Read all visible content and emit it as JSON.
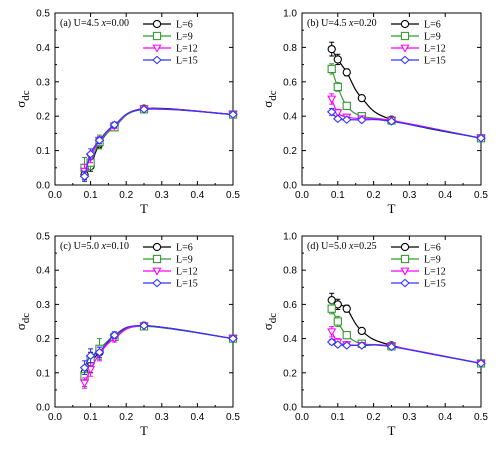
{
  "colors": {
    "L=6": "#000000",
    "L=9": "#339933",
    "L=12": "#ff00ff",
    "L=15": "#3333ff"
  },
  "chart_data": [
    {
      "type": "line",
      "panel_label": "(a) U=4.5 x=0.00",
      "label_parts": [
        "(a) U=4.5 ",
        "x",
        "=0.00"
      ],
      "xlabel": "T",
      "ylabel": "σdc",
      "xlim": [
        0.0,
        0.5
      ],
      "ylim": [
        0.0,
        0.5
      ],
      "xticks": [
        "0.0",
        "0.1",
        "0.2",
        "0.3",
        "0.4",
        "0.5"
      ],
      "yticks": [
        "0.0",
        "0.1",
        "0.2",
        "0.3",
        "0.4",
        "0.5"
      ],
      "legend_position": "top-right",
      "series": [
        {
          "name": "L=6",
          "marker": "circle",
          "x": [
            0.083,
            0.1,
            0.125,
            0.167,
            0.25,
            0.5
          ],
          "y": [
            0.03,
            0.055,
            0.12,
            0.17,
            0.222,
            0.205
          ],
          "err": [
            0.015,
            0.015,
            0.012,
            0.008,
            0.003,
            0.003
          ]
        },
        {
          "name": "L=9",
          "marker": "square",
          "x": [
            0.083,
            0.1,
            0.125,
            0.167,
            0.25,
            0.5
          ],
          "y": [
            0.05,
            0.065,
            0.125,
            0.168,
            0.22,
            0.205
          ],
          "err": [
            0.03,
            0.02,
            0.02,
            0.01,
            0.003,
            0.003
          ]
        },
        {
          "name": "L=12",
          "marker": "triangle-down",
          "x": [
            0.083,
            0.1,
            0.125,
            0.167,
            0.25,
            0.5
          ],
          "y": [
            0.04,
            0.08,
            0.13,
            0.172,
            0.221,
            0.205
          ],
          "err": [
            0.02,
            0.015,
            0.01,
            0.008,
            0.003,
            0.003
          ]
        },
        {
          "name": "L=15",
          "marker": "diamond",
          "x": [
            0.083,
            0.1,
            0.125,
            0.167,
            0.25,
            0.5
          ],
          "y": [
            0.025,
            0.09,
            0.13,
            0.175,
            0.22,
            0.205
          ],
          "err": [
            0.015,
            0.015,
            0.01,
            0.008,
            0.003,
            0.003
          ]
        }
      ]
    },
    {
      "type": "line",
      "panel_label": "(b) U=4.5 x=0.20",
      "label_parts": [
        "(b) U=4.5 ",
        "x",
        "=0.20"
      ],
      "xlabel": "T",
      "ylabel": "σdc",
      "xlim": [
        0.0,
        0.5
      ],
      "ylim": [
        0.0,
        1.0
      ],
      "xticks": [
        "0.0",
        "0.1",
        "0.2",
        "0.3",
        "0.4",
        "0.5"
      ],
      "yticks": [
        "0.0",
        "0.2",
        "0.4",
        "0.6",
        "0.8",
        "1.0"
      ],
      "legend_position": "top-right",
      "series": [
        {
          "name": "L=6",
          "marker": "circle",
          "x": [
            0.083,
            0.1,
            0.125,
            0.167,
            0.25,
            0.5
          ],
          "y": [
            0.79,
            0.73,
            0.655,
            0.505,
            0.38,
            0.272
          ],
          "err": [
            0.04,
            0.03,
            0.02,
            0.01,
            0.005,
            0.005
          ]
        },
        {
          "name": "L=9",
          "marker": "square",
          "x": [
            0.083,
            0.1,
            0.125,
            0.167,
            0.25,
            0.5
          ],
          "y": [
            0.675,
            0.57,
            0.46,
            0.4,
            0.375,
            0.272
          ],
          "err": [
            0.03,
            0.025,
            0.02,
            0.01,
            0.005,
            0.005
          ]
        },
        {
          "name": "L=12",
          "marker": "triangle-down",
          "x": [
            0.083,
            0.1,
            0.125,
            0.167,
            0.25,
            0.5
          ],
          "y": [
            0.5,
            0.42,
            0.395,
            0.385,
            0.375,
            0.272
          ],
          "err": [
            0.03,
            0.02,
            0.01,
            0.008,
            0.005,
            0.005
          ]
        },
        {
          "name": "L=15",
          "marker": "diamond",
          "x": [
            0.083,
            0.1,
            0.125,
            0.167,
            0.25,
            0.5
          ],
          "y": [
            0.425,
            0.385,
            0.38,
            0.378,
            0.37,
            0.272
          ],
          "err": [
            0.02,
            0.01,
            0.008,
            0.005,
            0.005,
            0.005
          ]
        }
      ]
    },
    {
      "type": "line",
      "panel_label": "(c) U=5.0 x=0.10",
      "label_parts": [
        "(c) U=5.0 ",
        "x",
        "=0.10"
      ],
      "xlabel": "T",
      "ylabel": "σdc",
      "xlim": [
        0.0,
        0.5
      ],
      "ylim": [
        0.0,
        0.5
      ],
      "xticks": [
        "0.0",
        "0.1",
        "0.2",
        "0.3",
        "0.4",
        "0.5"
      ],
      "yticks": [
        "0.0",
        "0.1",
        "0.2",
        "0.3",
        "0.4",
        "0.5"
      ],
      "legend_position": "top-right",
      "series": [
        {
          "name": "L=6",
          "marker": "circle",
          "x": [
            0.083,
            0.1,
            0.125,
            0.167,
            0.25,
            0.5
          ],
          "y": [
            0.1,
            0.13,
            0.16,
            0.205,
            0.238,
            0.2
          ],
          "err": [
            0.02,
            0.03,
            0.02,
            0.01,
            0.004,
            0.003
          ]
        },
        {
          "name": "L=9",
          "marker": "square",
          "x": [
            0.083,
            0.1,
            0.125,
            0.167,
            0.25,
            0.5
          ],
          "y": [
            0.09,
            0.14,
            0.17,
            0.205,
            0.236,
            0.2
          ],
          "err": [
            0.03,
            0.03,
            0.03,
            0.01,
            0.004,
            0.003
          ]
        },
        {
          "name": "L=12",
          "marker": "triangle-down",
          "x": [
            0.083,
            0.1,
            0.125,
            0.167,
            0.25,
            0.5
          ],
          "y": [
            0.07,
            0.11,
            0.155,
            0.2,
            0.237,
            0.2
          ],
          "err": [
            0.015,
            0.02,
            0.02,
            0.01,
            0.004,
            0.003
          ]
        },
        {
          "name": "L=15",
          "marker": "diamond",
          "x": [
            0.083,
            0.1,
            0.125,
            0.167,
            0.25,
            0.5
          ],
          "y": [
            0.115,
            0.15,
            0.16,
            0.21,
            0.238,
            0.2
          ],
          "err": [
            0.02,
            0.02,
            0.015,
            0.01,
            0.004,
            0.003
          ]
        }
      ]
    },
    {
      "type": "line",
      "panel_label": "(d) U=5.0 x=0.25",
      "label_parts": [
        "(d) U=5.0 ",
        "x",
        "=0.25"
      ],
      "xlabel": "T",
      "ylabel": "σdc",
      "xlim": [
        0.0,
        0.5
      ],
      "ylim": [
        0.0,
        1.0
      ],
      "xticks": [
        "0.0",
        "0.1",
        "0.2",
        "0.3",
        "0.4",
        "0.5"
      ],
      "yticks": [
        "0.0",
        "0.2",
        "0.4",
        "0.6",
        "0.8",
        "1.0"
      ],
      "legend_position": "top-right",
      "series": [
        {
          "name": "L=6",
          "marker": "circle",
          "x": [
            0.083,
            0.1,
            0.125,
            0.167,
            0.25,
            0.5
          ],
          "y": [
            0.625,
            0.6,
            0.575,
            0.445,
            0.36,
            0.255
          ],
          "err": [
            0.04,
            0.03,
            0.02,
            0.01,
            0.005,
            0.004
          ]
        },
        {
          "name": "L=9",
          "marker": "square",
          "x": [
            0.083,
            0.1,
            0.125,
            0.167,
            0.25,
            0.5
          ],
          "y": [
            0.575,
            0.5,
            0.42,
            0.37,
            0.355,
            0.255
          ],
          "err": [
            0.03,
            0.03,
            0.02,
            0.01,
            0.005,
            0.004
          ]
        },
        {
          "name": "L=12",
          "marker": "triangle-down",
          "x": [
            0.083,
            0.1,
            0.125,
            0.167,
            0.25,
            0.5
          ],
          "y": [
            0.44,
            0.38,
            0.365,
            0.36,
            0.355,
            0.255
          ],
          "err": [
            0.03,
            0.02,
            0.01,
            0.008,
            0.005,
            0.004
          ]
        },
        {
          "name": "L=15",
          "marker": "diamond",
          "x": [
            0.083,
            0.1,
            0.125,
            0.167,
            0.25,
            0.5
          ],
          "y": [
            0.38,
            0.365,
            0.36,
            0.36,
            0.352,
            0.255
          ],
          "err": [
            0.015,
            0.01,
            0.008,
            0.005,
            0.005,
            0.004
          ]
        }
      ]
    }
  ]
}
